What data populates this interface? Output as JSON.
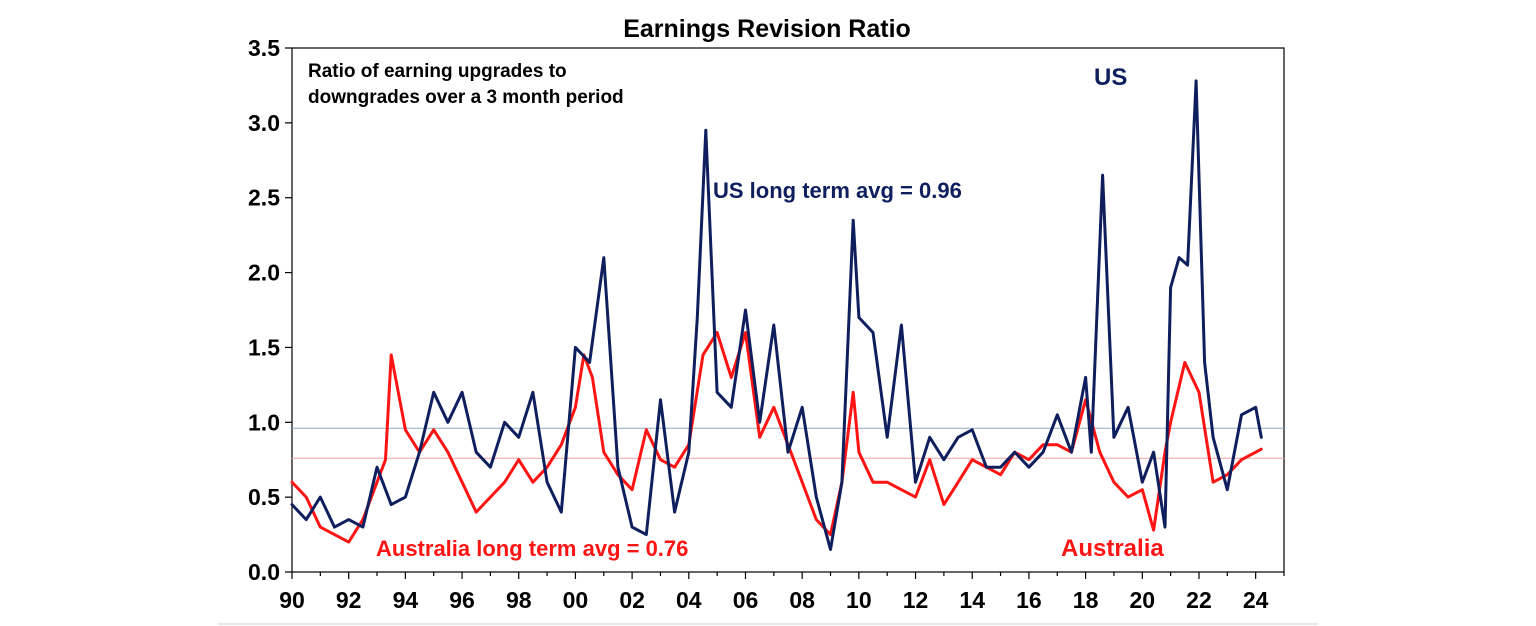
{
  "chart_data": {
    "type": "line",
    "title": "Earnings Revision Ratio",
    "subtitle_lines": [
      "Ratio of earning upgrades to",
      "downgrades over a 3 month period"
    ],
    "xlabel": "",
    "ylabel": "",
    "xlim": [
      1990,
      2025
    ],
    "ylim": [
      0,
      3.5
    ],
    "x_ticks": [
      1990,
      1992,
      1994,
      1996,
      1998,
      2000,
      2002,
      2004,
      2006,
      2008,
      2010,
      2012,
      2014,
      2016,
      2018,
      2020,
      2022,
      2024
    ],
    "x_tick_labels": [
      "90",
      "92",
      "94",
      "96",
      "98",
      "00",
      "02",
      "04",
      "06",
      "08",
      "10",
      "12",
      "14",
      "16",
      "18",
      "20",
      "22",
      "24"
    ],
    "y_ticks": [
      0,
      0.5,
      1,
      1.5,
      2,
      2.5,
      3,
      3.5
    ],
    "y_tick_labels": [
      "0.0",
      "0.5",
      "1.0",
      "1.5",
      "2.0",
      "2.5",
      "3.0",
      "3.5"
    ],
    "grid": false,
    "reference_lines": [
      {
        "name": "US long term avg",
        "value": 0.96,
        "color": "#8faabe"
      },
      {
        "name": "Australia long term avg",
        "value": 0.76,
        "color": "#f4a3a3"
      }
    ],
    "annotations": {
      "us_label": "US",
      "us_avg": "US long term avg = 0.96",
      "aus_avg": "Australia long term avg = 0.76",
      "aus_label": "Australia"
    },
    "series": [
      {
        "name": "US",
        "color": "#0f1f5e",
        "x": [
          1990,
          1990.5,
          1991,
          1991.5,
          1992,
          1992.5,
          1993,
          1993.5,
          1994,
          1994.5,
          1995,
          1995.5,
          1996,
          1996.5,
          1997,
          1997.5,
          1998,
          1998.5,
          1999,
          1999.5,
          2000,
          2000.5,
          2001,
          2001.5,
          2002,
          2002.5,
          2003,
          2003.5,
          2004,
          2004.3,
          2004.6,
          2005,
          2005.5,
          2006,
          2006.5,
          2007,
          2007.5,
          2008,
          2008.5,
          2009,
          2009.4,
          2009.8,
          2010,
          2010.5,
          2011,
          2011.5,
          2012,
          2012.5,
          2013,
          2013.5,
          2014,
          2014.5,
          2015,
          2015.5,
          2016,
          2016.5,
          2017,
          2017.5,
          2018,
          2018.2,
          2018.6,
          2019,
          2019.5,
          2020,
          2020.4,
          2020.8,
          2021,
          2021.3,
          2021.6,
          2021.9,
          2022.2,
          2022.5,
          2023,
          2023.5,
          2024,
          2024.2
        ],
        "values": [
          0.45,
          0.35,
          0.5,
          0.3,
          0.35,
          0.3,
          0.7,
          0.45,
          0.5,
          0.8,
          1.2,
          1.0,
          1.2,
          0.8,
          0.7,
          1.0,
          0.9,
          1.2,
          0.6,
          0.4,
          1.5,
          1.4,
          2.1,
          0.7,
          0.3,
          0.25,
          1.15,
          0.4,
          0.8,
          1.7,
          2.95,
          1.2,
          1.1,
          1.75,
          1.0,
          1.65,
          0.8,
          1.1,
          0.5,
          0.15,
          0.6,
          2.35,
          1.7,
          1.6,
          0.9,
          1.65,
          0.6,
          0.9,
          0.75,
          0.9,
          0.95,
          0.7,
          0.7,
          0.8,
          0.7,
          0.8,
          1.05,
          0.8,
          1.3,
          0.8,
          2.65,
          0.9,
          1.1,
          0.6,
          0.8,
          0.3,
          1.9,
          2.1,
          2.05,
          3.28,
          1.4,
          0.9,
          0.55,
          1.05,
          1.1,
          0.9
        ],
        "series_label_key": "us_label"
      },
      {
        "name": "Australia",
        "color": "#ff1414",
        "x": [
          1990,
          1990.5,
          1991,
          1991.5,
          1992,
          1992.5,
          1993,
          1993.3,
          1993.5,
          1994,
          1994.5,
          1995,
          1995.5,
          1996,
          1996.5,
          1997,
          1997.5,
          1998,
          1998.5,
          1999,
          1999.5,
          2000,
          2000.3,
          2000.6,
          2001,
          2001.5,
          2002,
          2002.5,
          2003,
          2003.5,
          2004,
          2004.5,
          2005,
          2005.5,
          2006,
          2006.5,
          2007,
          2007.5,
          2008,
          2008.5,
          2009,
          2009.4,
          2009.8,
          2010,
          2010.5,
          2011,
          2011.5,
          2012,
          2012.5,
          2013,
          2013.5,
          2014,
          2014.5,
          2015,
          2015.5,
          2016,
          2016.5,
          2017,
          2017.5,
          2018,
          2018.5,
          2019,
          2019.5,
          2020,
          2020.4,
          2020.8,
          2021,
          2021.5,
          2022,
          2022.5,
          2023,
          2023.5,
          2024,
          2024.2
        ],
        "values": [
          0.6,
          0.5,
          0.3,
          0.25,
          0.2,
          0.35,
          0.6,
          0.75,
          1.45,
          0.95,
          0.8,
          0.95,
          0.8,
          0.6,
          0.4,
          0.5,
          0.6,
          0.75,
          0.6,
          0.7,
          0.85,
          1.1,
          1.45,
          1.3,
          0.8,
          0.65,
          0.55,
          0.95,
          0.75,
          0.7,
          0.85,
          1.45,
          1.6,
          1.3,
          1.6,
          0.9,
          1.1,
          0.85,
          0.6,
          0.35,
          0.25,
          0.6,
          1.2,
          0.8,
          0.6,
          0.6,
          0.55,
          0.5,
          0.75,
          0.45,
          0.6,
          0.75,
          0.7,
          0.65,
          0.8,
          0.75,
          0.85,
          0.85,
          0.8,
          1.15,
          0.8,
          0.6,
          0.5,
          0.55,
          0.28,
          0.8,
          1.0,
          1.4,
          1.2,
          0.6,
          0.65,
          0.75,
          0.8,
          0.82
        ],
        "series_label_key": "aus_label"
      }
    ]
  }
}
